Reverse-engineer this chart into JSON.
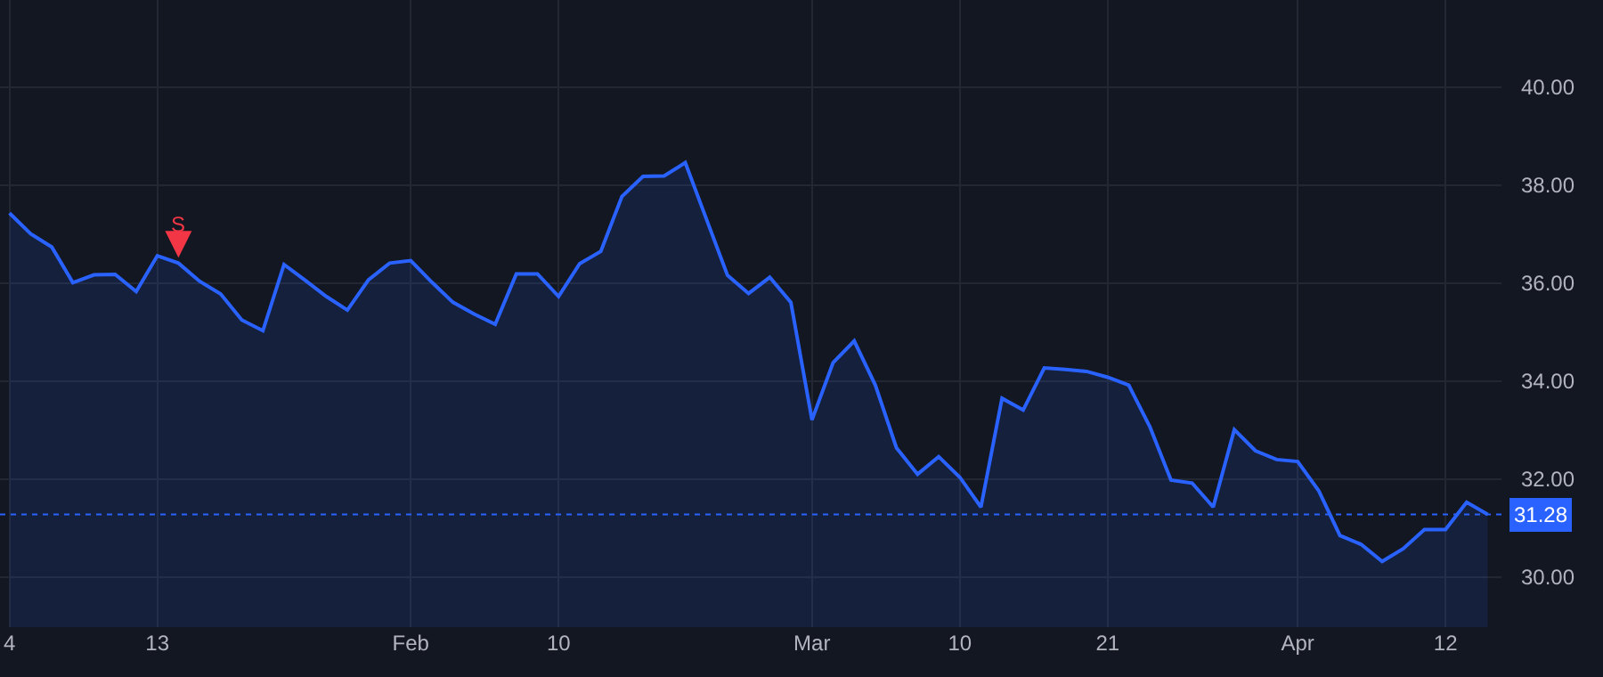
{
  "chart_data": {
    "type": "area",
    "categories": [
      "4",
      null,
      null,
      null,
      null,
      null,
      null,
      "13",
      null,
      null,
      null,
      null,
      null,
      null,
      null,
      null,
      null,
      null,
      null,
      "Feb",
      null,
      null,
      null,
      null,
      null,
      null,
      "10",
      null,
      null,
      null,
      null,
      null,
      null,
      null,
      null,
      null,
      null,
      null,
      "Mar",
      null,
      null,
      null,
      null,
      null,
      null,
      "10",
      null,
      null,
      null,
      null,
      null,
      null,
      "21",
      null,
      null,
      null,
      null,
      null,
      null,
      null,
      null,
      "Apr",
      null,
      null,
      null,
      null,
      null,
      null,
      "12",
      null,
      null
    ],
    "series": [
      {
        "color": "#2962ff",
        "values": [
          37.43,
          37.01,
          36.74,
          36.01,
          36.17,
          36.18,
          35.83,
          36.56,
          36.41,
          36.04,
          35.78,
          35.25,
          35.03,
          36.38,
          36.06,
          35.73,
          35.45,
          36.07,
          36.41,
          36.46,
          36.02,
          35.61,
          35.37,
          35.16,
          36.19,
          36.19,
          35.73,
          36.4,
          36.65,
          37.77,
          38.18,
          38.19,
          38.46,
          37.31,
          36.16,
          35.79,
          36.12,
          35.61,
          33.21,
          34.38,
          34.82,
          33.92,
          32.64,
          32.1,
          32.46,
          32.04,
          31.43,
          33.65,
          33.41,
          34.27,
          34.24,
          34.2,
          34.08,
          33.92,
          33.07,
          31.98,
          31.92,
          31.43,
          33.01,
          32.58,
          32.4,
          32.36,
          31.76,
          30.85,
          30.67,
          30.32,
          30.58,
          30.97,
          30.97,
          31.53,
          31.28
        ]
      }
    ],
    "ylim": [
      28.98,
      41.78
    ],
    "yticks": [
      {
        "value": 30,
        "label": "30.00"
      },
      {
        "value": 32,
        "label": "32.00"
      },
      {
        "value": 34,
        "label": "34.00"
      },
      {
        "value": 36,
        "label": "36.00"
      },
      {
        "value": 38,
        "label": "38.00"
      },
      {
        "value": 40,
        "label": "40.00"
      }
    ],
    "grid": true,
    "legend": false,
    "ref_lines": [
      {
        "axis": "y",
        "value": 31.28,
        "label": "31.28",
        "color": "#2962ff",
        "line_style": "dotted"
      }
    ],
    "annotations": [
      {
        "text": "S",
        "y": 36.41
      }
    ]
  }
}
